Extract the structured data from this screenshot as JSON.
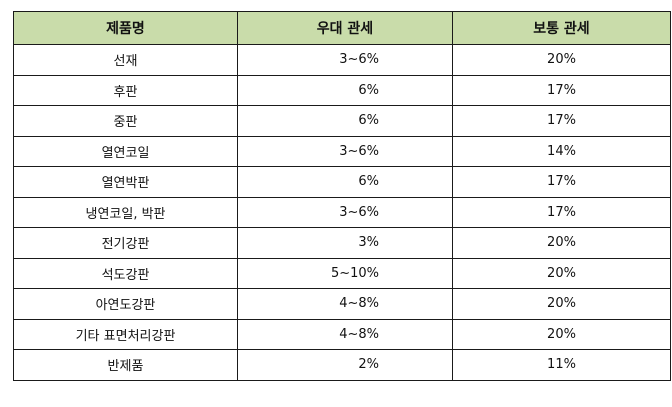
{
  "table": {
    "headers": [
      "제품명",
      "우대 관세",
      "보통 관세"
    ],
    "rows": [
      {
        "name": "선재",
        "preferential": "3~6%",
        "general": "20%"
      },
      {
        "name": "후판",
        "preferential": "6%",
        "general": "17%"
      },
      {
        "name": "중판",
        "preferential": "6%",
        "general": "17%"
      },
      {
        "name": "열연코일",
        "preferential": "3~6%",
        "general": "14%"
      },
      {
        "name": "열연박판",
        "preferential": "6%",
        "general": "17%"
      },
      {
        "name": "냉연코일, 박판",
        "preferential": "3~6%",
        "general": "17%"
      },
      {
        "name": "전기강판",
        "preferential": "3%",
        "general": "20%"
      },
      {
        "name": "석도강판",
        "preferential": "5~10%",
        "general": "20%"
      },
      {
        "name": "아연도강판",
        "preferential": "4~8%",
        "general": "20%"
      },
      {
        "name": "기타 표면처리강판",
        "preferential": "4~8%",
        "general": "20%"
      },
      {
        "name": "반제품",
        "preferential": "2%",
        "general": "11%"
      }
    ]
  },
  "colors": {
    "header_background": "#c9dcaa",
    "border": "#1a1a1a"
  }
}
